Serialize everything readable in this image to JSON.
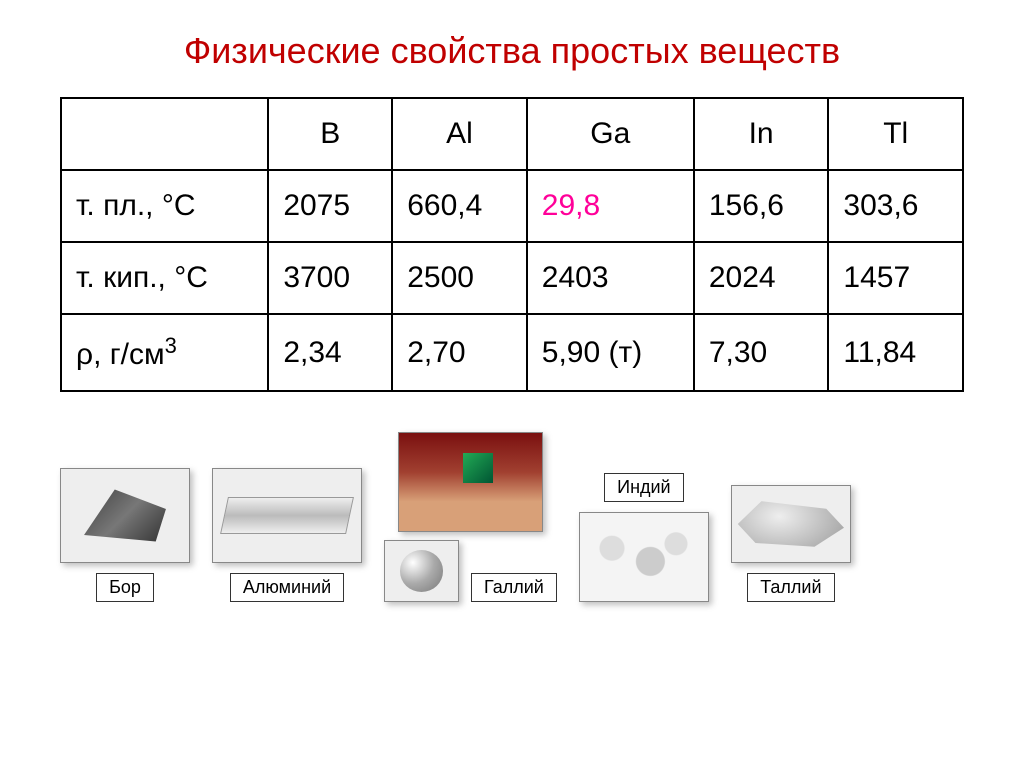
{
  "title": "Физические свойства простых веществ",
  "table": {
    "elements": [
      "B",
      "Al",
      "Ga",
      "In",
      "Tl"
    ],
    "rows": [
      {
        "label": "т. пл., °С",
        "values": [
          "2075",
          "660,4",
          "29,8",
          "156,6",
          "303,6"
        ],
        "highlight_index": 2
      },
      {
        "label": "т. кип., °С",
        "values": [
          "3700",
          "2500",
          "2403",
          "2024",
          "1457"
        ],
        "highlight_index": -1
      },
      {
        "label": "ρ, г/см³",
        "values": [
          "2,34",
          "2,70",
          "5,90 (т)",
          "7,30",
          "11,84"
        ],
        "highlight_index": -1
      }
    ],
    "row3_label_plain": "ρ, г/см",
    "row3_label_sup": "3"
  },
  "captions": {
    "boron": "Бор",
    "aluminium": "Алюминий",
    "gallium": "Галлий",
    "indium": "Индий",
    "thallium": "Таллий"
  },
  "colors": {
    "title": "#c00000",
    "highlight": "#ff0099",
    "border": "#000000",
    "text": "#000000",
    "background": "#ffffff"
  }
}
